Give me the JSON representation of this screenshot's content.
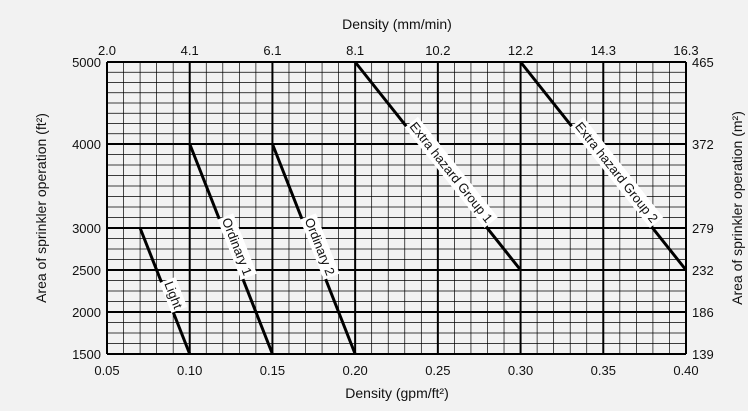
{
  "chart_data": {
    "type": "line",
    "xlabel": "Density (gpm/ft²)",
    "ylabel": "Area of sprinkler operation (ft²)",
    "top_xlabel": "Density (mm/min)",
    "right_ylabel": "Area of sprinkler operation (m²)",
    "xlim": [
      0.05,
      0.4
    ],
    "ylim": [
      1500,
      5000
    ],
    "x_ticks": [
      0.05,
      0.1,
      0.15,
      0.2,
      0.25,
      0.3,
      0.35,
      0.4
    ],
    "x_tick_labels": [
      "0.05",
      "0.10",
      "0.15",
      "0.20",
      "0.25",
      "0.30",
      "0.35",
      "0.40"
    ],
    "y_ticks": [
      1500,
      2000,
      2500,
      3000,
      4000,
      5000
    ],
    "y_tick_labels": [
      "1500",
      "2000",
      "2500",
      "3000",
      "4000",
      "5000"
    ],
    "top_x_ticks": [
      0.05,
      0.1,
      0.15,
      0.2,
      0.25,
      0.3,
      0.35,
      0.4
    ],
    "top_x_tick_labels": [
      "2.0",
      "4.1",
      "6.1",
      "8.1",
      "10.2",
      "12.2",
      "14.3",
      "16.3"
    ],
    "right_y_ticks": [
      1500,
      2000,
      2500,
      3000,
      4000,
      5000
    ],
    "right_y_tick_labels": [
      "139",
      "186",
      "232",
      "279",
      "372",
      "465"
    ],
    "grid": true,
    "series": [
      {
        "name": "Light",
        "x": [
          0.07,
          0.1
        ],
        "y": [
          3000,
          1500
        ]
      },
      {
        "name": "Ordinary 1",
        "x": [
          0.1,
          0.15
        ],
        "y": [
          4000,
          1500
        ]
      },
      {
        "name": "Ordinary 2",
        "x": [
          0.15,
          0.2
        ],
        "y": [
          4000,
          1500
        ]
      },
      {
        "name": "Extra hazard Group 1",
        "x": [
          0.2,
          0.3
        ],
        "y": [
          5000,
          2500
        ]
      },
      {
        "name": "Extra hazard Group 2",
        "x": [
          0.3,
          0.4
        ],
        "y": [
          5000,
          2500
        ]
      }
    ]
  }
}
